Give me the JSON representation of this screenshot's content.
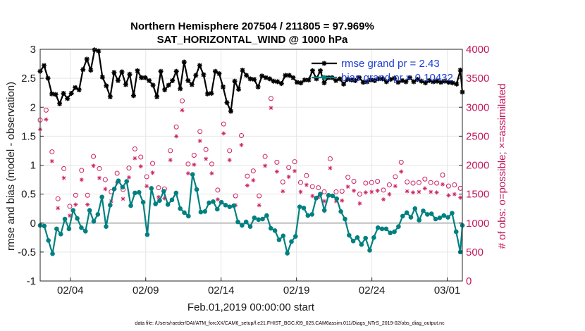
{
  "chart_data": {
    "type": "line",
    "title": "Northern Hemisphere 207504 / 211805 = 97.969%",
    "subtitle": "SAT_HORIZONTAL_WIND @ 1000 hPa",
    "ylabel": "rmse and bias (model - observation)",
    "ylabel_right": "# of obs: o=possible; ×=assimilated",
    "xlabel": "Feb.01,2019 00:00:00 start",
    "footnote": "data file: /Users/raeder/DAI/ATM_forcXX/CAM6_setup/f.e21.FHIST_BGC.f09_025.CAM6assim.011/Diags_NTrS_2019-02/obs_diag_output.nc",
    "xlim": [
      1,
      29
    ],
    "ylim": [
      -1,
      3
    ],
    "ylim_right": [
      0,
      4000
    ],
    "x_ticks": [
      3,
      8,
      13,
      18,
      23,
      28
    ],
    "x_tick_labels": [
      "02/04",
      "02/09",
      "02/14",
      "02/19",
      "02/24",
      "03/01"
    ],
    "y_ticks": [
      -1,
      -0.5,
      0,
      0.5,
      1,
      1.5,
      2,
      2.5,
      3
    ],
    "y_tick_labels": [
      "-1",
      "-0.5",
      "0",
      "0.5",
      "1",
      "1.5",
      "2",
      "2.5",
      "3"
    ],
    "y2_ticks": [
      0,
      500,
      1000,
      1500,
      2000,
      2500,
      3000,
      3500,
      4000
    ],
    "y2_tick_labels": [
      "0",
      "500",
      "1000",
      "1500",
      "2000",
      "2500",
      "3000",
      "3500",
      "4000"
    ],
    "legend_position": "top-right",
    "series": [
      {
        "name": "rmse grand pr = 2.43",
        "color": "#000000",
        "marker": "star",
        "values": [
          2.62,
          2.69,
          2.72,
          2.69,
          2.5,
          2.27,
          2.23,
          2.39,
          2.22,
          2.31,
          2.06,
          2.38,
          2.24,
          2.31,
          2.15,
          2.52,
          2.24,
          2.43,
          2.34,
          2.61,
          2.3,
          2.44,
          2.65,
          2.26,
          2.83,
          2.3,
          2.64,
          2.52,
          2.99,
          2.73,
          2.97,
          2.42,
          2.52,
          2.17,
          2.37,
          2.25,
          2.18,
          2.32,
          2.6,
          2.64,
          2.46,
          2.3,
          2.61,
          2.58,
          2.39,
          2.72,
          2.57,
          2.49,
          2.2,
          2.56,
          2.63,
          2.45,
          2.51,
          2.67,
          2.51,
          2.61,
          2.46,
          2.53,
          2.38,
          2.51,
          2.18,
          2.73,
          2.62,
          2.53,
          2.3,
          2.36,
          2.38,
          2.52,
          2.46,
          2.48,
          2.62,
          2.42,
          2.32,
          2.51,
          2.78,
          2.63,
          2.46,
          2.62,
          2.39,
          2.29,
          2.55,
          2.3,
          2.72,
          2.64,
          2.56,
          2.4,
          2.23,
          2.37,
          2.24,
          2.42,
          2.62,
          2.05,
          2.58,
          2.15,
          2.35,
          2.25,
          2.08,
          2.2,
          1.93,
          2.13,
          2.45,
          2.2,
          2.31,
          2.14,
          2.64,
          2.3,
          2.55,
          2.53,
          2.49,
          2.38,
          2.48,
          2.47,
          2.35,
          2.53,
          2.54,
          2.51,
          2.51,
          2.43,
          2.49,
          2.45,
          2.45,
          2.47,
          2.44,
          2.46,
          2.41,
          2.53,
          2.55,
          2.58,
          2.55,
          2.48,
          2.51,
          2.47,
          2.43,
          2.44,
          2.42,
          2.49,
          2.47,
          2.42,
          2.47,
          2.51,
          2.63,
          2.42,
          2.49,
          2.27,
          2.63,
          2.5,
          2.42,
          2.46,
          2.51,
          2.45,
          2.51,
          2.44,
          2.46,
          2.41,
          2.49,
          2.43,
          2.4,
          2.52,
          2.48,
          2.55,
          2.47,
          2.52,
          2.46,
          2.45,
          2.51,
          2.48,
          2.43,
          2.49,
          2.44,
          2.5,
          2.47,
          2.41,
          2.46,
          2.42,
          2.49,
          2.45,
          2.49,
          2.51,
          2.44,
          2.5,
          2.48,
          2.42,
          2.5,
          2.45,
          2.43,
          2.52,
          2.46,
          2.5,
          2.44,
          2.46,
          2.51,
          2.47,
          2.44,
          2.43,
          2.48,
          2.5,
          2.45,
          2.49,
          2.42,
          2.47,
          2.46,
          2.5,
          2.44,
          2.48,
          2.45,
          2.48,
          2.43,
          2.49,
          2.45,
          2.5,
          2.43,
          2.47,
          2.42,
          2.46,
          2.4,
          2.49,
          2.64,
          2.26
        ]
      },
      {
        "name": "bias grand pr = 0.10432",
        "color": "#008080",
        "marker": "dot",
        "values": [
          -0.04,
          -0.55,
          -0.05,
          0.09,
          -0.3,
          -0.04,
          -0.53,
          -0.39,
          -0.1,
          -0.01,
          -0.19,
          -0.38,
          0.07,
          -0.08,
          -0.1,
          -0.35,
          0.22,
          0.21,
          0.08,
          0.01,
          -0.08,
          -0.15,
          -0.14,
          0.05,
          0.22,
          -0.04,
          0.03,
          0.06,
          0.15,
          0.3,
          0.45,
          0.13,
          -0.06,
          0.38,
          0.31,
          0.35,
          0.59,
          0.69,
          0.73,
          0.45,
          0.62,
          0.43,
          0.72,
          0.44,
          0.3,
          0.55,
          0.52,
          0.38,
          0.53,
          0.5,
          0.36,
          0.28,
          -0.2,
          -0.3,
          0.6,
          0.58,
          0.33,
          0.26,
          0.39,
          0.39,
          0.55,
          0.3,
          0.32,
          0.4,
          0.4,
          0.28,
          0.52,
          0.44,
          0.25,
          0.17,
          0.18,
          0.36,
          0.12,
          0.45,
          0.84,
          0.72,
          0.58,
          0.36,
          0.19,
          0.16,
          0.2,
          0.54,
          0.35,
          0.58,
          0.37,
          0.43,
          0.24,
          0.25,
          0.36,
          0.43,
          0.31,
          0.41,
          0.28,
          0.17,
          0.3,
          0.1,
          0.02,
          -0.05,
          -0.04,
          0.0,
          0.02,
          0.17,
          -0.06,
          0.12,
          0.09,
          0.0,
          0.06,
          -0.05,
          0.07,
          -0.02,
          0.13,
          0.04,
          -0.09,
          0.01,
          -0.13,
          -0.22,
          -0.29,
          -0.02,
          -0.22,
          -0.2,
          -0.52,
          -0.42,
          -0.32,
          -0.07,
          -0.23,
          -0.31,
          0.28,
          0.41,
          0.26,
          0.07,
          0.13,
          0.22,
          0.15,
          0.3,
          0.43,
          0.48,
          0.5,
          0.42,
          0.22,
          0.48,
          0.48,
          0.5,
          0.47,
          0.33,
          0.42,
          0.49,
          0.2,
          0.16,
          0.07,
          -0.08,
          -0.21,
          -0.06,
          -0.31,
          -0.33,
          -0.25,
          -0.45,
          -0.37,
          -0.09,
          -0.26,
          -0.17,
          -0.47,
          -0.22,
          -0.25,
          -0.28,
          -0.08,
          -0.2,
          -0.1,
          -0.2,
          -0.1,
          -0.42,
          -0.17,
          -0.05,
          -0.15,
          -0.12,
          -0.06,
          0.15,
          0.12,
          0.2,
          0.18,
          0.05,
          0.1,
          0.15,
          0.25,
          0.18,
          0.05,
          0.16,
          0.21,
          0.13,
          0.15,
          0.19,
          0.16,
          0.17,
          0.07,
          0.13,
          0.09,
          0.19,
          0.13,
          0.17,
          0.1,
          0.06,
          0.17,
          -0.13,
          -0.15,
          -0.17,
          -0.5,
          -0.04
        ]
      }
    ],
    "obs_possible": [
      2780,
      3660,
      2860,
      2950,
      1620,
      2710,
      2230,
      1700,
      1720,
      1420,
      1660,
      2110,
      1940,
      1730,
      1310,
      1290,
      1620,
      1560,
      1480,
      1360,
      1590,
      1910,
      2100,
      2220,
      1480,
      1860,
      1830,
      2150,
      2000,
      2020,
      1940,
      1840,
      1330,
      1750,
      1730,
      1360,
      1540,
      2070,
      1760,
      1860,
      1540,
      1520,
      1580,
      2210,
      2110,
      1950,
      2070,
      2440,
      2280,
      1870,
      2000,
      2140,
      2500,
      2300,
      1800,
      1740,
      2070,
      2030,
      2010,
      2090,
      1610,
      2210,
      1370,
      1590,
      1460,
      1540,
      2250,
      2010,
      2140,
      2660,
      2140,
      1400,
      3110,
      2240,
      2460,
      2020,
      2220,
      2180,
      2170,
      1950,
      3160,
      2580,
      2230,
      2000,
      2270,
      1770,
      1680,
      2020,
      2070,
      1650,
      1570,
      2560,
      2480,
      2710,
      2640,
      2310,
      2250,
      2340,
      1840,
      1470,
      1730,
      3210,
      2510,
      1950,
      2730,
      1810,
      1710,
      2000,
      1900,
      1470,
      1530,
      1470,
      1770,
      2240,
      2150,
      2120,
      2120,
      3150,
      2450,
      2300,
      2050,
      2140,
      1690,
      1710,
      1750,
      2100,
      1960,
      1900,
      1850,
      2060,
      2010,
      2230,
      1700,
      1740,
      1520,
      1820,
      1520,
      1640,
      1630,
      1760,
      1860,
      1610,
      2150,
      1700,
      1540,
      1710,
      2050,
      2110,
      1730,
      1800,
      1540,
      1600,
      1730,
      1550,
      1780,
      1700,
      1790,
      1820,
      1690,
      1720,
      1650,
      1640,
      1500,
      1620,
      1740,
      1690,
      1660,
      1760,
      1700,
      1730,
      1610,
      1720,
      1680,
      1690,
      1570,
      1750,
      1700,
      1660,
      1580,
      1760,
      1800,
      1780,
      1730,
      2050,
      1710,
      1690,
      1710,
      1810,
      1610,
      1690,
      1770,
      1680,
      1700,
      1540,
      1600,
      1760,
      1790,
      1620,
      1700,
      1720,
      1760,
      1690,
      1740,
      1710,
      1830,
      1600,
      1560,
      1640,
      1790,
      1760,
      1660,
      1730,
      1760,
      1600,
      2150
    ],
    "obs_assimilated": [
      2740,
      3600,
      2820,
      2910,
      1580,
      2670,
      2190,
      1660,
      1680,
      1380,
      1620,
      2070,
      1900,
      1690,
      1270,
      1250,
      1580,
      1520,
      1440,
      1320,
      1550,
      1870,
      2060,
      2180,
      1440,
      1820,
      1790,
      2110,
      1960,
      1980,
      1900,
      1800,
      1290,
      1710,
      1690,
      1320,
      1500,
      2030,
      1720,
      1820,
      1500,
      1480,
      1540,
      2170,
      2070,
      1910,
      2030,
      2400,
      2240,
      1830,
      1960,
      2100,
      2460,
      2260,
      1760,
      1700,
      2030,
      1990,
      1970,
      2050,
      1570,
      2170,
      1330,
      1550,
      1420,
      1500,
      2210,
      1970,
      2100,
      2620,
      2100,
      1360,
      3070,
      2200,
      2420,
      1980,
      2180,
      2140,
      2130,
      1910,
      3120,
      2540,
      2190,
      1960,
      2230,
      1730,
      1640,
      1980,
      2030,
      1610,
      1530,
      2520,
      2440,
      2670,
      2600,
      2270,
      2210,
      2300,
      1800,
      1430,
      1690,
      3170,
      2470,
      1910,
      2690,
      1770,
      1670,
      1960,
      1860,
      1430,
      1490,
      1430,
      1730,
      2200,
      2110,
      2080,
      2080,
      3110,
      2410,
      2260,
      2010,
      2100,
      1650,
      1670,
      1710,
      2060,
      1920,
      1860,
      1810,
      2020,
      1970,
      2190,
      1660,
      1700,
      1480,
      1780,
      1480,
      1600,
      1590,
      1720,
      1820,
      1570,
      2110,
      1660,
      1500,
      1670,
      2010,
      2070,
      1690,
      1760,
      1500,
      1560,
      1690,
      1510,
      1740,
      1660,
      1750,
      1780,
      1650,
      1680,
      1610,
      1600,
      1460,
      1580,
      1700,
      1650,
      1620,
      1720,
      1660,
      1690,
      1570,
      1680,
      1640,
      1650,
      1530,
      1710,
      1660,
      1620,
      1540,
      1720,
      1760,
      1740,
      1690,
      2010,
      1670,
      1650,
      1670,
      1770,
      1570,
      1650,
      1730,
      1640,
      1660,
      1500,
      1560,
      1720,
      1750,
      1580,
      1660,
      1680,
      1720,
      1650,
      1700,
      1670,
      1790,
      1560,
      1520,
      1600,
      1750,
      1720,
      1620,
      1690,
      1720,
      1560,
      2110
    ]
  }
}
